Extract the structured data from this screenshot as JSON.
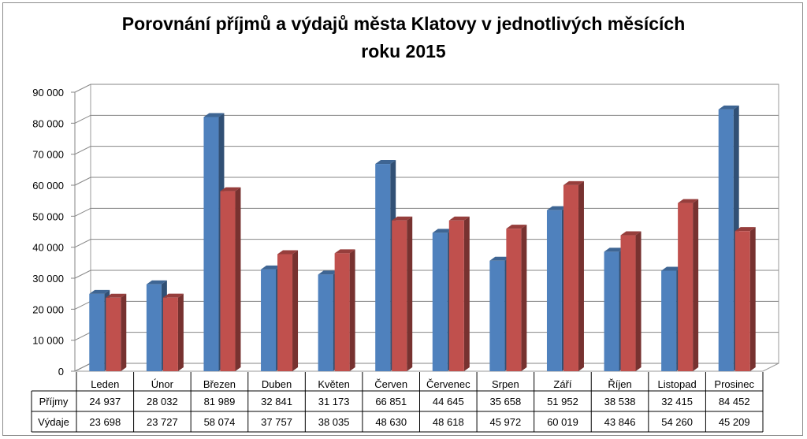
{
  "chart_data": {
    "type": "bar",
    "title_lines": [
      "Porovnání příjmů a výdajů města Klatovy v jednotlivých měsících",
      "roku 2015"
    ],
    "categories": [
      "Leden",
      "Únor",
      "Březen",
      "Duben",
      "Květen",
      "Červen",
      "Červenec",
      "Srpen",
      "Září",
      "Říjen",
      "Listopad",
      "Prosinec"
    ],
    "series": [
      {
        "name": "Příjmy",
        "color": "#4f81bd",
        "values": [
          24937,
          28032,
          81989,
          32841,
          31173,
          66851,
          44645,
          35658,
          51952,
          38538,
          32415,
          84452
        ],
        "labels": [
          "24 937",
          "28 032",
          "81 989",
          "32 841",
          "31 173",
          "66 851",
          "44 645",
          "35 658",
          "51 952",
          "38 538",
          "32 415",
          "84 452"
        ]
      },
      {
        "name": "Výdaje",
        "color": "#c0504d",
        "values": [
          23698,
          23727,
          58074,
          37757,
          38035,
          48630,
          48618,
          45972,
          60019,
          43846,
          54260,
          45209
        ],
        "labels": [
          "23 698",
          "23 727",
          "58 074",
          "37 757",
          "38 035",
          "48 630",
          "48 618",
          "45 972",
          "60 019",
          "43 846",
          "54 260",
          "45 209"
        ]
      }
    ],
    "ylim": [
      0,
      90000
    ],
    "yticks": [
      0,
      10000,
      20000,
      30000,
      40000,
      50000,
      60000,
      70000,
      80000,
      90000
    ],
    "ytick_labels": [
      "0",
      "10 000",
      "20 000",
      "30 000",
      "40 000",
      "50 000",
      "60 000",
      "70 000",
      "80 000",
      "90 000"
    ],
    "grid": true,
    "legend": "data-table-below",
    "style": "3d-clustered-column"
  }
}
